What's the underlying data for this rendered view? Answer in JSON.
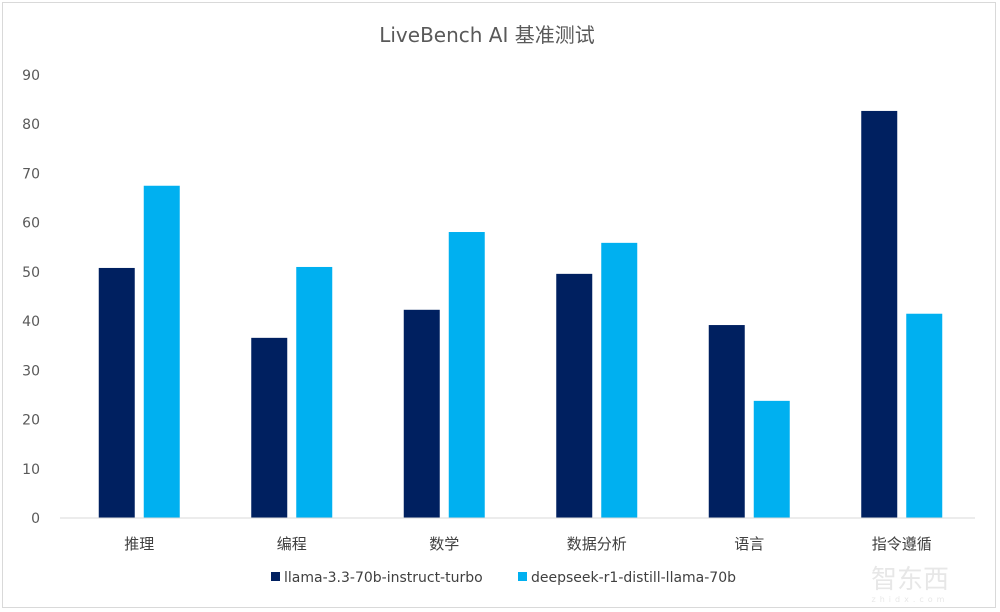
{
  "chart_data": {
    "type": "bar",
    "title": "LiveBench AI 基准测试",
    "categories": [
      "推理",
      "编程",
      "数学",
      "数据分析",
      "语言",
      "指令遵循"
    ],
    "series": [
      {
        "name": "llama-3.3-70b-instruct-turbo",
        "color": "#002060",
        "values": [
          50.8,
          36.6,
          42.3,
          49.6,
          39.2,
          82.7
        ]
      },
      {
        "name": "deepseek-r1-distill-llama-70b",
        "color": "#00B0F0",
        "values": [
          67.5,
          51.0,
          58.1,
          55.9,
          23.8,
          41.5
        ]
      }
    ],
    "ylim": [
      0,
      90
    ],
    "yticks": [
      0,
      10,
      20,
      30,
      40,
      50,
      60,
      70,
      80,
      90
    ],
    "grid": false,
    "legend": "bottom",
    "xlabel": "",
    "ylabel": ""
  },
  "watermark": "智东西 zhidx.com"
}
